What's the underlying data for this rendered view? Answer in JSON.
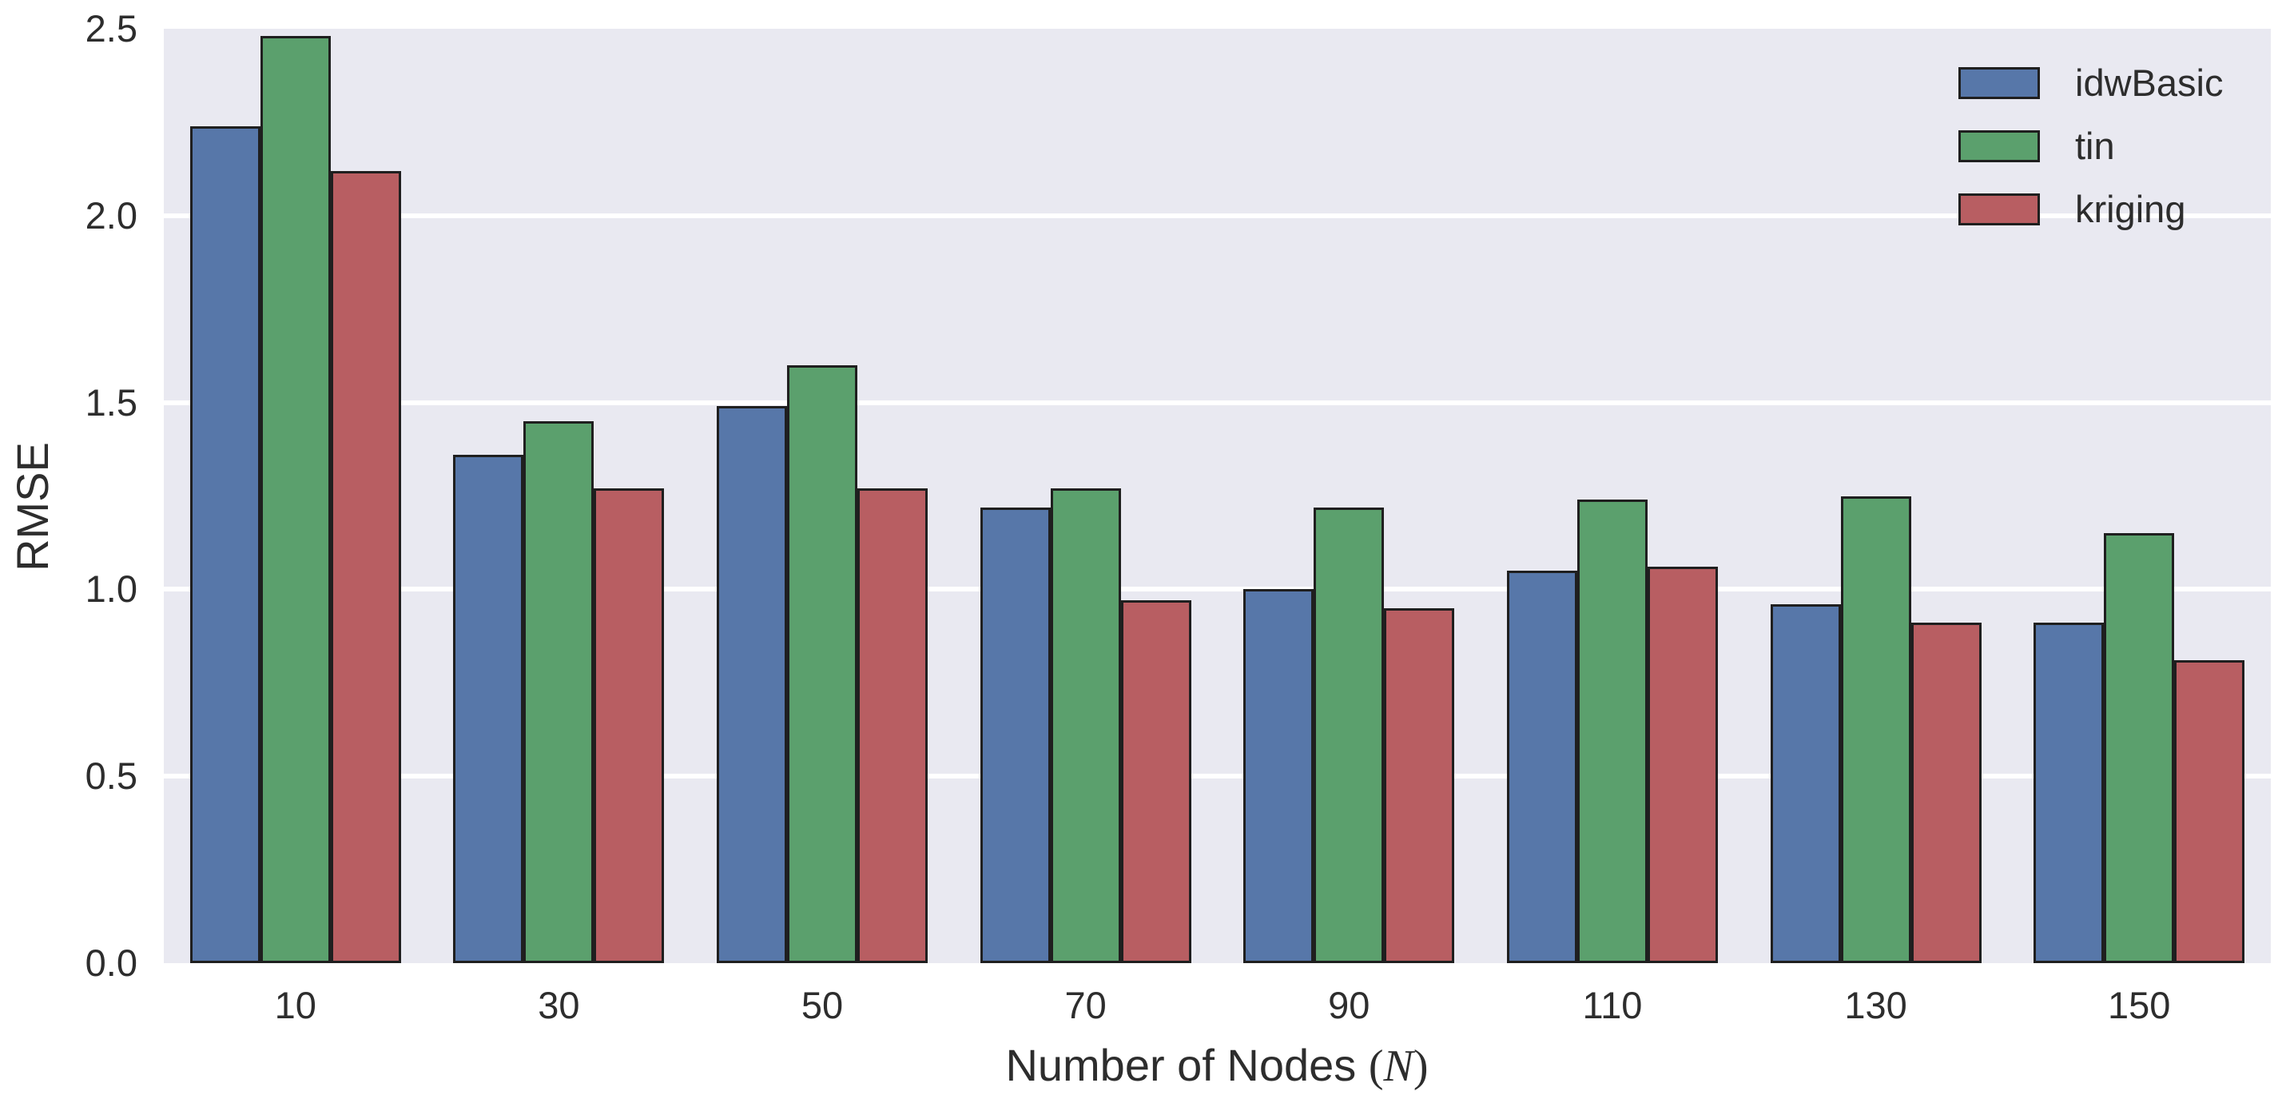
{
  "figure": {
    "background_color": "#ffffff",
    "plot_background_color": "#e9e9f1",
    "gridline_color": "#ffffff",
    "bar_edge_color": "#1f1f1f",
    "text_color": "#2d2d2d"
  },
  "chart_data": {
    "type": "bar",
    "title": "",
    "xlabel": "Number of Nodes (N)",
    "xlabel_parts": {
      "text": "Number of Nodes ",
      "lparen": "(",
      "variable": "N",
      "rparen": ")"
    },
    "ylabel": "RMSE",
    "categories": [
      "10",
      "30",
      "50",
      "70",
      "90",
      "110",
      "130",
      "150"
    ],
    "series": [
      {
        "name": "idwBasic",
        "color": "#5777a9",
        "values": [
          2.24,
          1.36,
          1.49,
          1.22,
          1.0,
          1.05,
          0.96,
          0.91
        ]
      },
      {
        "name": "tin",
        "color": "#5ba06d",
        "values": [
          2.48,
          1.45,
          1.6,
          1.27,
          1.22,
          1.24,
          1.25,
          1.15
        ]
      },
      {
        "name": "kriging",
        "color": "#b85e62",
        "values": [
          2.12,
          1.27,
          1.27,
          0.97,
          0.95,
          1.06,
          0.91,
          0.81
        ]
      }
    ],
    "ylim": [
      0,
      2.5
    ],
    "yticks": [
      "0.0",
      "0.5",
      "1.0",
      "1.5",
      "2.0",
      "2.5"
    ],
    "grid": true,
    "grid_axis": "y",
    "legend_position": "upper right"
  }
}
